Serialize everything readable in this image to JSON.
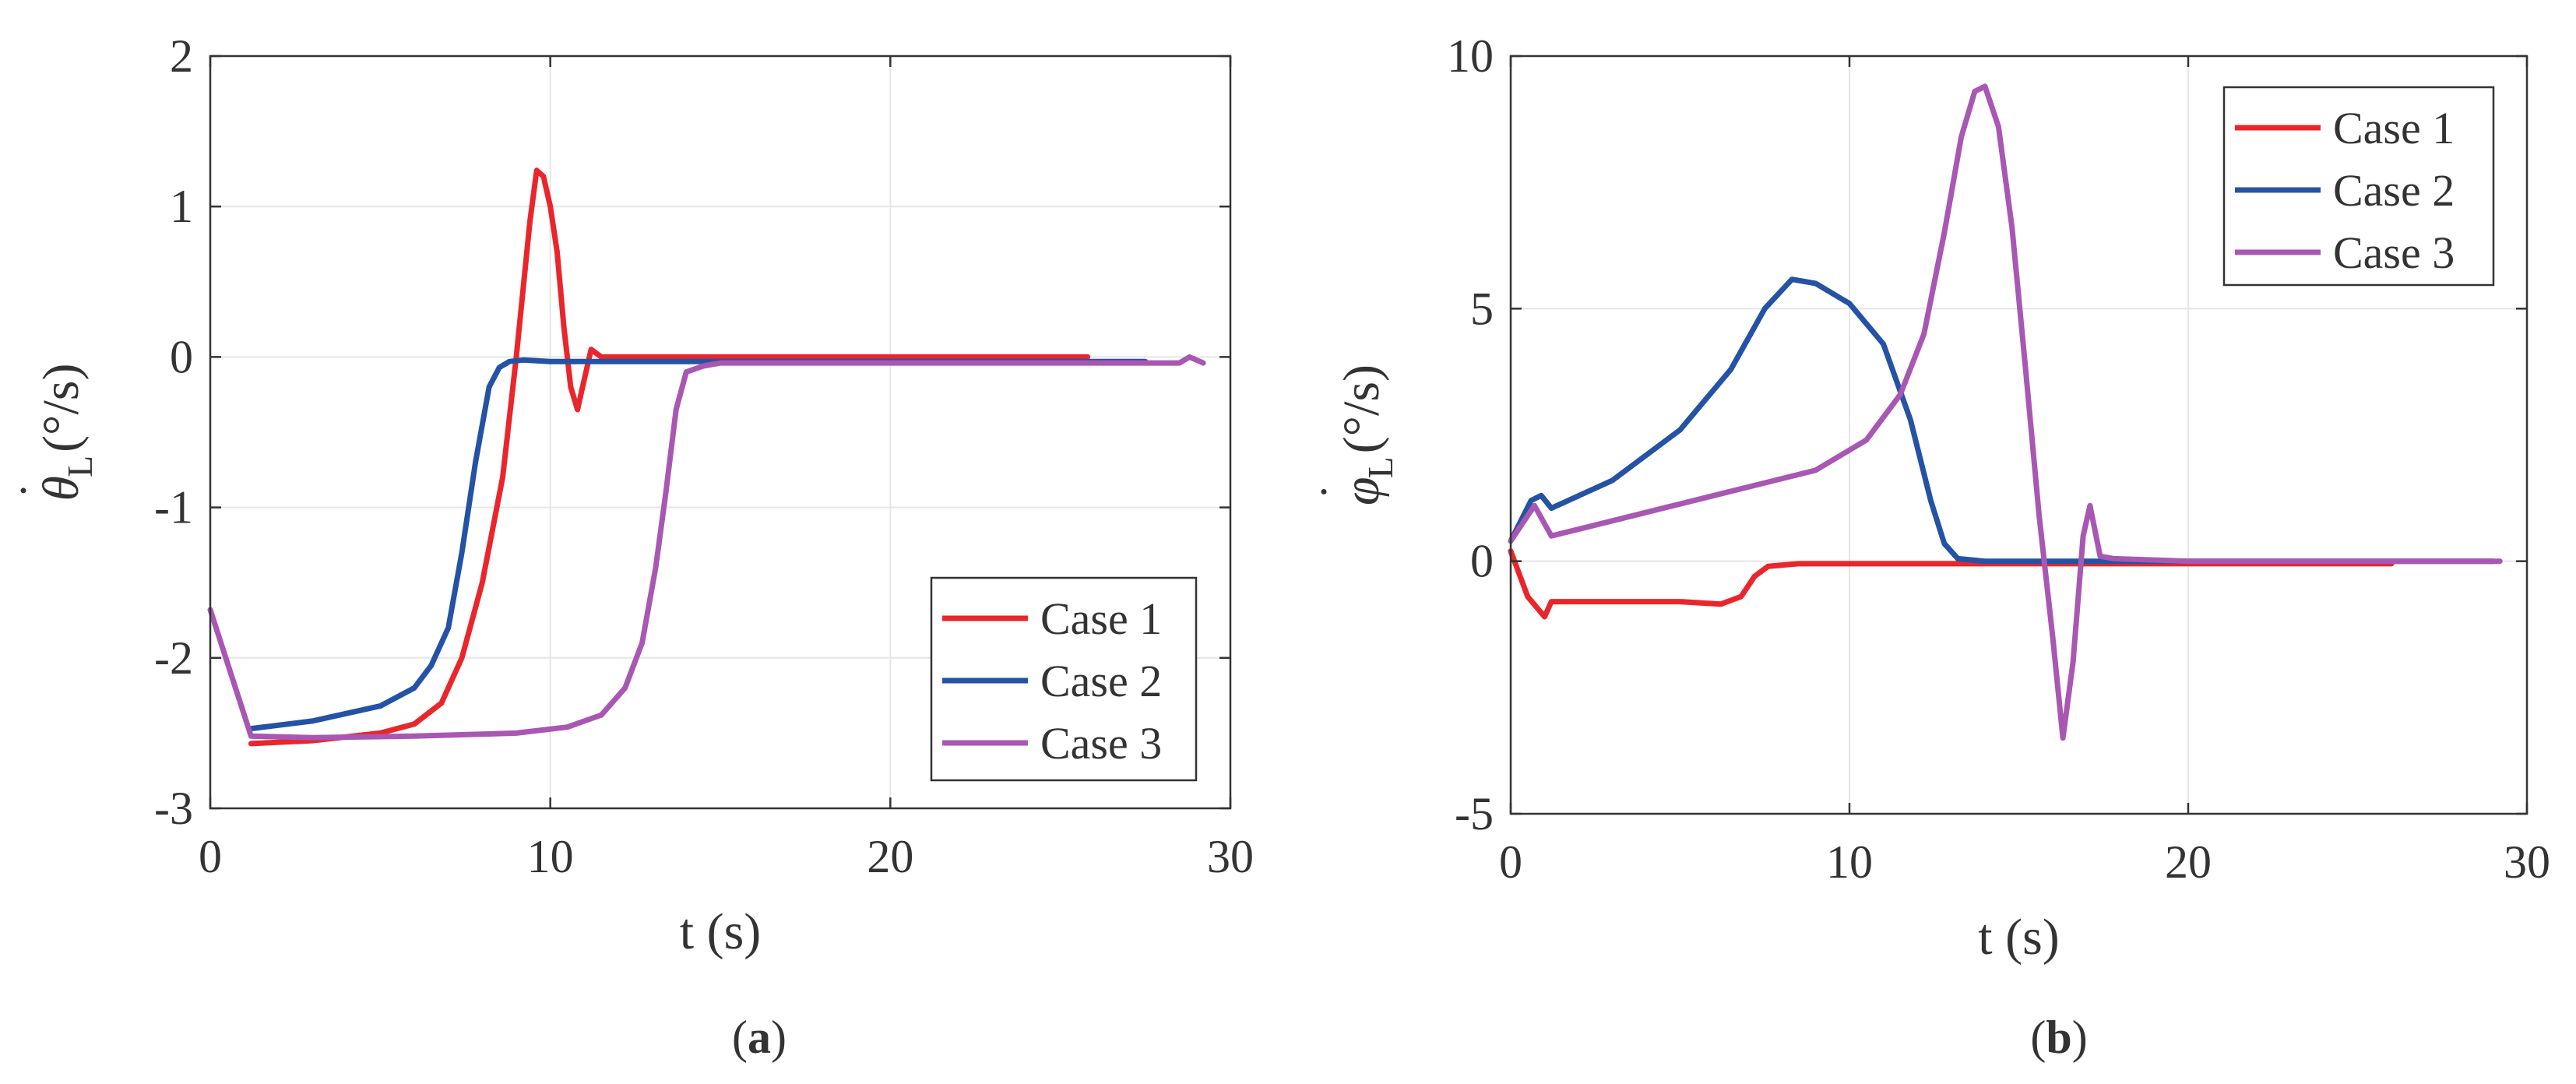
{
  "figure": {
    "captions": [
      {
        "open": "(",
        "letter": "a",
        "close": ")"
      },
      {
        "open": "(",
        "letter": "b",
        "close": ")"
      }
    ]
  },
  "colors": {
    "case1": "#e8262b",
    "case2": "#2452a5",
    "case3": "#a857b2",
    "grid": "#e6e6e6",
    "axis": "#333333"
  },
  "chart_data": [
    {
      "type": "line",
      "id": "a",
      "title": "",
      "xlabel": "t (s)",
      "ylabel": {
        "symbol": "θ",
        "dot": "˙",
        "subscript": "L",
        "unit": "(°/s)"
      },
      "xlim": [
        0,
        30
      ],
      "ylim": [
        -3,
        2
      ],
      "xticks": [
        0,
        10,
        20,
        30
      ],
      "yticks": [
        2,
        1,
        0,
        -1,
        -2,
        -3
      ],
      "grid": true,
      "legend_position": "bottom-right",
      "series": [
        {
          "name": "Case 1",
          "color": "#e8262b",
          "x": [
            1.2,
            3,
            5,
            6,
            6.8,
            7.4,
            8,
            8.6,
            9.0,
            9.4,
            9.6,
            9.8,
            10.0,
            10.2,
            10.4,
            10.6,
            10.8,
            11.0,
            11.2,
            11.5,
            15,
            20,
            25,
            25.8
          ],
          "y": [
            -2.57,
            -2.55,
            -2.5,
            -2.44,
            -2.3,
            -2.0,
            -1.5,
            -0.8,
            0.0,
            0.9,
            1.24,
            1.2,
            1.0,
            0.7,
            0.2,
            -0.2,
            -0.35,
            -0.15,
            0.05,
            0.0,
            0.0,
            0.0,
            0.0,
            0.0
          ]
        },
        {
          "name": "Case 2",
          "color": "#2452a5",
          "x": [
            1.2,
            3,
            5,
            6,
            6.5,
            7.0,
            7.4,
            7.8,
            8.2,
            8.5,
            8.8,
            9.2,
            10,
            15,
            20,
            25,
            27.5
          ],
          "y": [
            -2.47,
            -2.42,
            -2.32,
            -2.2,
            -2.05,
            -1.8,
            -1.3,
            -0.7,
            -0.2,
            -0.07,
            -0.03,
            -0.02,
            -0.03,
            -0.03,
            -0.03,
            -0.03,
            -0.03
          ]
        },
        {
          "name": "Case 3",
          "color": "#a857b2",
          "x": [
            0,
            1.2,
            3,
            6,
            9,
            10.5,
            11.5,
            12.2,
            12.7,
            13.1,
            13.4,
            13.7,
            14.0,
            14.5,
            15,
            20,
            25,
            28.5,
            28.8,
            29.2
          ],
          "y": [
            -1.68,
            -2.52,
            -2.53,
            -2.52,
            -2.5,
            -2.46,
            -2.38,
            -2.2,
            -1.9,
            -1.4,
            -0.9,
            -0.35,
            -0.1,
            -0.06,
            -0.04,
            -0.04,
            -0.04,
            -0.04,
            0.0,
            -0.04
          ]
        }
      ]
    },
    {
      "type": "line",
      "id": "b",
      "title": "",
      "xlabel": "t (s)",
      "ylabel": {
        "symbol": "φ",
        "dot": "˙",
        "subscript": "L",
        "unit": "(°/s)"
      },
      "xlim": [
        0,
        30
      ],
      "ylim": [
        -5,
        10
      ],
      "xticks": [
        0,
        10,
        20,
        30
      ],
      "yticks": [
        10,
        5,
        0,
        -5
      ],
      "grid": true,
      "legend_position": "top-right",
      "series": [
        {
          "name": "Case 1",
          "color": "#e8262b",
          "x": [
            0,
            0.5,
            1.0,
            1.2,
            3,
            5,
            6.2,
            6.8,
            7.2,
            7.6,
            8.5,
            10,
            15,
            20,
            26
          ],
          "y": [
            0.2,
            -0.7,
            -1.1,
            -0.8,
            -0.8,
            -0.8,
            -0.85,
            -0.7,
            -0.3,
            -0.1,
            -0.05,
            -0.05,
            -0.05,
            -0.05,
            -0.05
          ]
        },
        {
          "name": "Case 2",
          "color": "#2452a5",
          "x": [
            0,
            0.6,
            0.9,
            1.2,
            3,
            5,
            6.5,
            7.5,
            8.3,
            9,
            10,
            11,
            11.8,
            12.4,
            12.8,
            13.2,
            14,
            20,
            25,
            29
          ],
          "y": [
            0.4,
            1.2,
            1.3,
            1.05,
            1.6,
            2.6,
            3.8,
            5.0,
            5.58,
            5.5,
            5.1,
            4.3,
            2.8,
            1.2,
            0.35,
            0.05,
            0.0,
            0.0,
            0.0,
            0.0
          ]
        },
        {
          "name": "Case 3",
          "color": "#a857b2",
          "x": [
            0,
            0.7,
            1.2,
            3,
            6,
            9,
            10.5,
            11.5,
            12.2,
            12.8,
            13.3,
            13.7,
            14.0,
            14.4,
            14.8,
            15.2,
            15.6,
            16.0,
            16.3,
            16.6,
            16.9,
            17.1,
            17.4,
            17.8,
            20,
            25,
            29.2
          ],
          "y": [
            0.4,
            1.1,
            0.5,
            0.8,
            1.3,
            1.8,
            2.4,
            3.3,
            4.5,
            6.5,
            8.4,
            9.3,
            9.4,
            8.6,
            6.6,
            3.8,
            0.9,
            -1.5,
            -3.5,
            -2.0,
            0.5,
            1.1,
            0.1,
            0.05,
            0.0,
            0.0,
            0.0
          ]
        }
      ]
    }
  ]
}
